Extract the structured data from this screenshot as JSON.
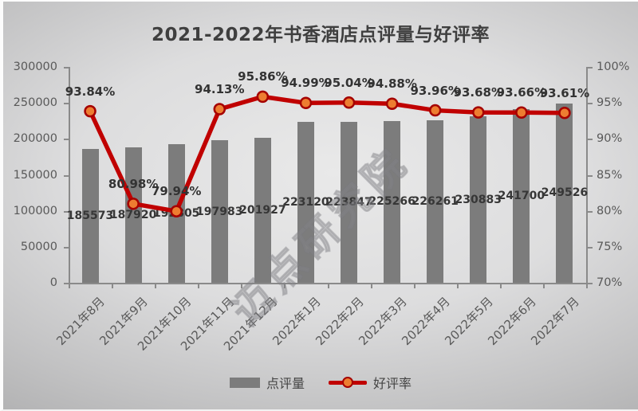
{
  "watermark": "迈点研究院",
  "chart_data": {
    "type": "combo-bar-line",
    "title": "2021-2022年书香酒店点评量与好评率",
    "categories": [
      "2021年8月",
      "2021年9月",
      "2021年10月",
      "2021年11月",
      "2021年12月",
      "2022年1月",
      "2022年2月",
      "2022年3月",
      "2022年4月",
      "2022年5月",
      "2022年6月",
      "2022年7月"
    ],
    "series": [
      {
        "name": "点评量",
        "type": "bar",
        "axis": "left",
        "values": [
          185573,
          187920,
          192805,
          197983,
          201927,
          223120,
          223847,
          225266,
          226261,
          230883,
          241700,
          249526
        ],
        "labels": [
          "185573",
          "187920",
          "192805",
          "197983",
          "201927",
          "223120",
          "223847",
          "225266",
          "226261",
          "230883",
          "241700",
          "249526"
        ],
        "color": "#7c7c7c"
      },
      {
        "name": "好评率",
        "type": "line",
        "axis": "right",
        "values": [
          93.84,
          80.98,
          79.94,
          94.13,
          95.86,
          94.99,
          95.04,
          94.88,
          93.96,
          93.68,
          93.66,
          93.61
        ],
        "labels": [
          "93.84%",
          "80.98%",
          "79.94%",
          "94.13%",
          "95.86%",
          "94.99%",
          "95.04%",
          "94.88%",
          "93.96%",
          "93.68%",
          "93.66%",
          "93.61%"
        ],
        "color": "#c00000",
        "marker_fill": "#ed7d31",
        "marker_border": "#a50000"
      }
    ],
    "left_axis": {
      "min": 0,
      "max": 300000,
      "step": 50000,
      "tick_labels": [
        "300000",
        "250000",
        "200000",
        "150000",
        "100000",
        "50000",
        "0"
      ]
    },
    "right_axis": {
      "min": 70,
      "max": 100,
      "step": 5,
      "tick_labels": [
        "100%",
        "95%",
        "90%",
        "85%",
        "80%",
        "75%",
        "70%"
      ]
    },
    "legend": {
      "bar_label": "点评量",
      "line_label": "好评率",
      "position": "bottom"
    },
    "grid": false
  }
}
